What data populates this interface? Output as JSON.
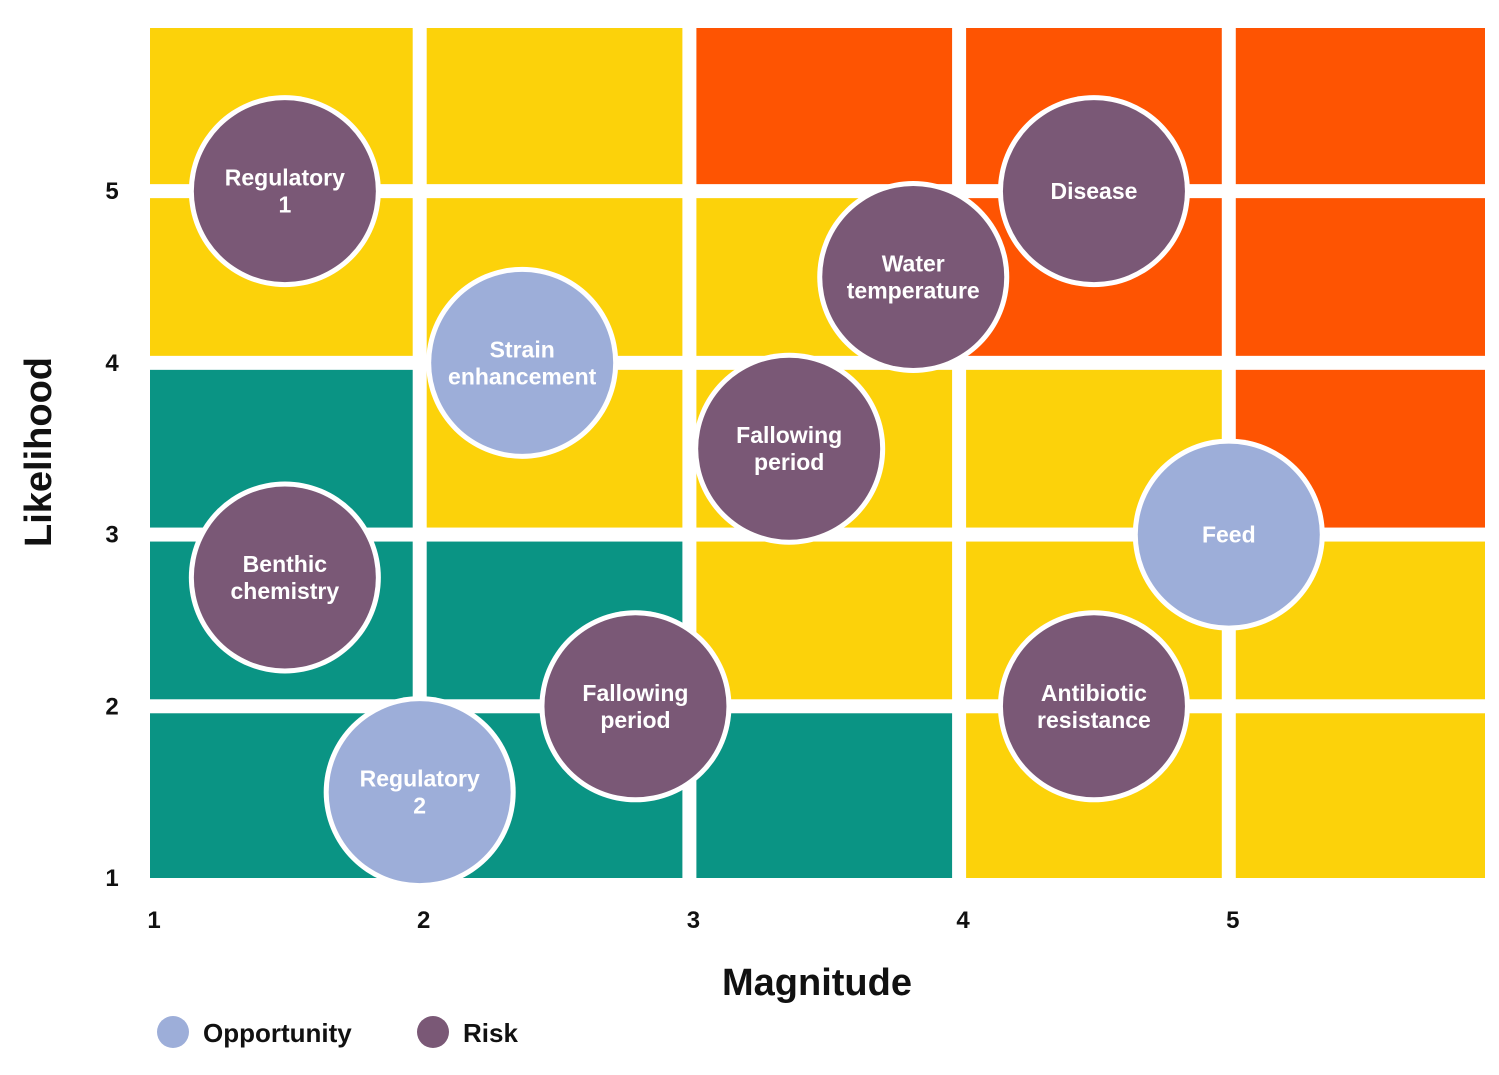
{
  "chart_data": {
    "type": "scatter",
    "xlabel": "Magnitude",
    "ylabel": "Likelihood",
    "x_ticks": [
      "1",
      "2",
      "3",
      "4",
      "5"
    ],
    "y_ticks": [
      "1",
      "2",
      "3",
      "4",
      "5"
    ],
    "xlim": [
      1,
      5.95
    ],
    "ylim": [
      1,
      5.95
    ],
    "zone_colors": {
      "green": "#0a9484",
      "yellow": "#fcd20a",
      "orange": "#fe5402"
    },
    "grid_cells": [
      {
        "col": 1,
        "row": 1,
        "zone": "green"
      },
      {
        "col": 2,
        "row": 1,
        "zone": "green"
      },
      {
        "col": 3,
        "row": 1,
        "zone": "green"
      },
      {
        "col": 4,
        "row": 1,
        "zone": "yellow"
      },
      {
        "col": 5,
        "row": 1,
        "zone": "yellow"
      },
      {
        "col": 1,
        "row": 2,
        "zone": "green"
      },
      {
        "col": 2,
        "row": 2,
        "zone": "green"
      },
      {
        "col": 3,
        "row": 2,
        "zone": "yellow"
      },
      {
        "col": 4,
        "row": 2,
        "zone": "yellow"
      },
      {
        "col": 5,
        "row": 2,
        "zone": "yellow"
      },
      {
        "col": 1,
        "row": 3,
        "zone": "green"
      },
      {
        "col": 2,
        "row": 3,
        "zone": "yellow"
      },
      {
        "col": 3,
        "row": 3,
        "zone": "yellow"
      },
      {
        "col": 4,
        "row": 3,
        "zone": "yellow"
      },
      {
        "col": 5,
        "row": 3,
        "zone": "orange"
      },
      {
        "col": 1,
        "row": 4,
        "zone": "yellow"
      },
      {
        "col": 2,
        "row": 4,
        "zone": "yellow"
      },
      {
        "col": 3,
        "row": 4,
        "zone": "yellow"
      },
      {
        "col": 4,
        "row": 4,
        "zone": "orange"
      },
      {
        "col": 5,
        "row": 4,
        "zone": "orange"
      },
      {
        "col": 1,
        "row": 5,
        "zone": "yellow"
      },
      {
        "col": 2,
        "row": 5,
        "zone": "yellow"
      },
      {
        "col": 3,
        "row": 5,
        "zone": "orange"
      },
      {
        "col": 4,
        "row": 5,
        "zone": "orange"
      },
      {
        "col": 5,
        "row": 5,
        "zone": "orange"
      }
    ],
    "categories": [
      {
        "key": "opportunity",
        "name": "Opportunity",
        "color": "#9daed9"
      },
      {
        "key": "risk",
        "name": "Risk",
        "color": "#7a5876"
      }
    ],
    "points": [
      {
        "label": [
          "Regulatory",
          "1"
        ],
        "x": 1.5,
        "y": 5.0,
        "category": "risk"
      },
      {
        "label": [
          "Disease"
        ],
        "x": 4.5,
        "y": 5.0,
        "category": "risk"
      },
      {
        "label": [
          "Water",
          "temperature"
        ],
        "x": 3.83,
        "y": 4.5,
        "category": "risk"
      },
      {
        "label": [
          "Strain",
          "enhancement"
        ],
        "x": 2.38,
        "y": 4.0,
        "category": "opportunity"
      },
      {
        "label": [
          "Fallowing",
          "period"
        ],
        "x": 3.37,
        "y": 3.5,
        "category": "risk"
      },
      {
        "label": [
          "Feed"
        ],
        "x": 5.0,
        "y": 3.0,
        "category": "opportunity"
      },
      {
        "label": [
          "Benthic",
          "chemistry"
        ],
        "x": 1.5,
        "y": 2.75,
        "category": "risk"
      },
      {
        "label": [
          "Fallowing",
          "period"
        ],
        "x": 2.8,
        "y": 2.0,
        "category": "risk"
      },
      {
        "label": [
          "Antibiotic",
          "resistance"
        ],
        "x": 4.5,
        "y": 2.0,
        "category": "risk"
      },
      {
        "label": [
          "Regulatory",
          "2"
        ],
        "x": 2.0,
        "y": 1.5,
        "category": "opportunity"
      }
    ]
  }
}
